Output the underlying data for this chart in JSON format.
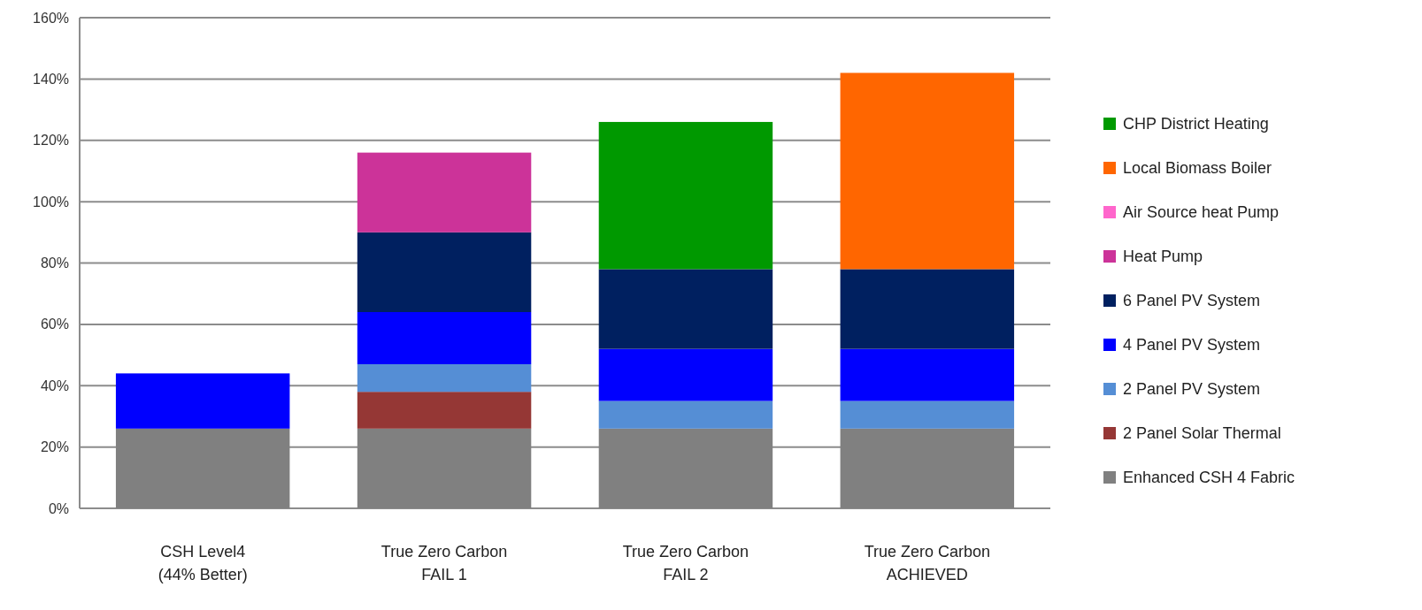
{
  "chart_data": {
    "type": "bar",
    "stacked": true,
    "categories": [
      "CSH Level4\n(44% Better)",
      "True Zero Carbon\nFAIL 1",
      "True Zero Carbon\nFAIL 2",
      "True Zero Carbon\nACHIEVED"
    ],
    "series": [
      {
        "name": "Enhanced CSH 4 Fabric",
        "color": "#808080",
        "values": [
          26,
          26,
          26,
          26
        ]
      },
      {
        "name": "2 Panel Solar Thermal",
        "color": "#953735",
        "values": [
          null,
          12,
          null,
          null
        ]
      },
      {
        "name": "2 Panel PV System",
        "color": "#558ed5",
        "values": [
          null,
          9,
          9,
          9
        ]
      },
      {
        "name": "4 Panel PV System",
        "color": "#0000ff",
        "values": [
          18,
          17,
          17,
          17
        ]
      },
      {
        "name": "6 Panel PV System",
        "color": "#002060",
        "values": [
          null,
          26,
          26,
          26
        ]
      },
      {
        "name": "Heat Pump",
        "color": "#cc3399",
        "values": [
          null,
          26,
          null,
          null
        ]
      },
      {
        "name": "Air Source heat Pump",
        "color": "#ff66cc",
        "values": [
          null,
          null,
          null,
          null
        ]
      },
      {
        "name": "Local Biomass Boiler",
        "color": "#ff6600",
        "values": [
          null,
          null,
          null,
          64
        ]
      },
      {
        "name": "CHP District Heating",
        "color": "#009900",
        "values": [
          null,
          null,
          48,
          null
        ]
      }
    ],
    "ylim": [
      0,
      160
    ],
    "yticks": [
      {
        "value": 0,
        "label": "0%"
      },
      {
        "value": 20,
        "label": "20%"
      },
      {
        "value": 40,
        "label": "40%"
      },
      {
        "value": 60,
        "label": "60%"
      },
      {
        "value": 80,
        "label": "80%"
      },
      {
        "value": 100,
        "label": "100%"
      },
      {
        "value": 120,
        "label": "120%"
      },
      {
        "value": 140,
        "label": "140%"
      },
      {
        "value": 160,
        "label": "160%"
      }
    ],
    "grid": true,
    "legend": "right"
  }
}
